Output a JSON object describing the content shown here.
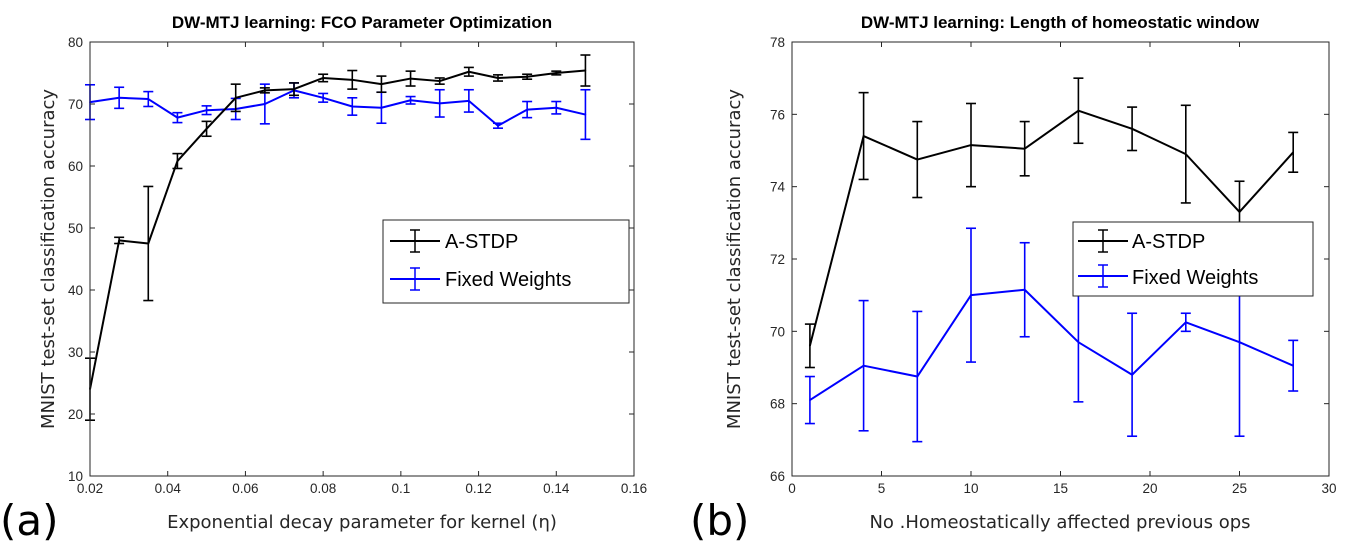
{
  "chart_data": [
    {
      "panel": "(a)",
      "type": "line",
      "title": "DW-MTJ learning: FCO Parameter Optimization",
      "xlabel": "Exponential decay parameter for kernel (η)",
      "ylabel": "MNIST test-set classification accuracy",
      "xlim": [
        0.02,
        0.16
      ],
      "ylim": [
        10,
        80
      ],
      "xticks": [
        0.02,
        0.04,
        0.06,
        0.08,
        0.1,
        0.12,
        0.14,
        0.16
      ],
      "xtick_labels": [
        "0.02",
        "0.04",
        "0.06",
        "0.08",
        "0.1",
        "0.12",
        "0.14",
        "0.16"
      ],
      "yticks": [
        10,
        20,
        30,
        40,
        50,
        60,
        70,
        80
      ],
      "ytick_labels": [
        "10",
        "20",
        "30",
        "40",
        "50",
        "60",
        "70",
        "80"
      ],
      "grid": false,
      "legend_position": "center-right",
      "x": [
        0.02,
        0.0275,
        0.035,
        0.0425,
        0.05,
        0.0575,
        0.065,
        0.0725,
        0.08,
        0.0875,
        0.095,
        0.1025,
        0.11,
        0.1175,
        0.125,
        0.1325,
        0.14,
        0.1475
      ],
      "series": [
        {
          "name": "A-STDP",
          "color": "#000000",
          "values": [
            24.0,
            48.0,
            47.5,
            60.8,
            66.0,
            71.0,
            72.2,
            72.4,
            74.2,
            73.9,
            73.2,
            74.1,
            73.7,
            75.2,
            74.2,
            74.4,
            75.0,
            75.4
          ],
          "errors": [
            5.0,
            0.5,
            9.2,
            1.2,
            1.2,
            2.2,
            0.4,
            1.0,
            0.6,
            1.5,
            1.3,
            1.2,
            0.5,
            0.7,
            0.5,
            0.4,
            0.3,
            2.5
          ]
        },
        {
          "name": "Fixed Weights",
          "color": "#0000ff",
          "values": [
            70.3,
            71.0,
            70.8,
            67.8,
            69.0,
            69.2,
            70.0,
            72.2,
            71.0,
            69.6,
            69.4,
            70.6,
            70.1,
            70.5,
            66.5,
            69.1,
            69.4,
            68.3
          ],
          "errors": [
            2.8,
            1.7,
            1.2,
            0.8,
            0.7,
            1.7,
            3.2,
            1.2,
            0.7,
            1.4,
            2.5,
            0.6,
            2.2,
            1.8,
            0.4,
            1.3,
            1.0,
            4.0
          ]
        }
      ]
    },
    {
      "panel": "(b)",
      "type": "line",
      "title": "DW-MTJ learning: Length of homeostatic window",
      "xlabel": "No .Homeostatically affected previous ops",
      "ylabel": "MNIST test-set classification accuracy",
      "xlim": [
        0,
        30
      ],
      "ylim": [
        66,
        78
      ],
      "xticks": [
        0,
        5,
        10,
        15,
        20,
        25,
        30
      ],
      "xtick_labels": [
        "0",
        "5",
        "10",
        "15",
        "20",
        "25",
        "30"
      ],
      "yticks": [
        66,
        68,
        70,
        72,
        74,
        76,
        78
      ],
      "ytick_labels": [
        "66",
        "68",
        "70",
        "72",
        "74",
        "76",
        "78"
      ],
      "grid": false,
      "legend_position": "center-right",
      "x": [
        1,
        4,
        7,
        10,
        13,
        16,
        19,
        22,
        25,
        28
      ],
      "series": [
        {
          "name": "A-STDP",
          "color": "#000000",
          "values": [
            69.6,
            75.4,
            74.75,
            75.15,
            75.05,
            76.1,
            75.6,
            74.9,
            73.3,
            74.95
          ],
          "errors": [
            0.6,
            1.2,
            1.05,
            1.15,
            0.75,
            0.9,
            0.6,
            1.35,
            0.85,
            0.55
          ]
        },
        {
          "name": "Fixed Weights",
          "color": "#0000ff",
          "values": [
            68.1,
            69.05,
            68.75,
            71.0,
            71.15,
            69.7,
            68.8,
            70.25,
            69.7,
            69.05
          ],
          "errors": [
            0.65,
            1.8,
            1.8,
            1.85,
            1.3,
            1.65,
            1.7,
            0.25,
            2.6,
            0.7
          ]
        }
      ]
    }
  ]
}
